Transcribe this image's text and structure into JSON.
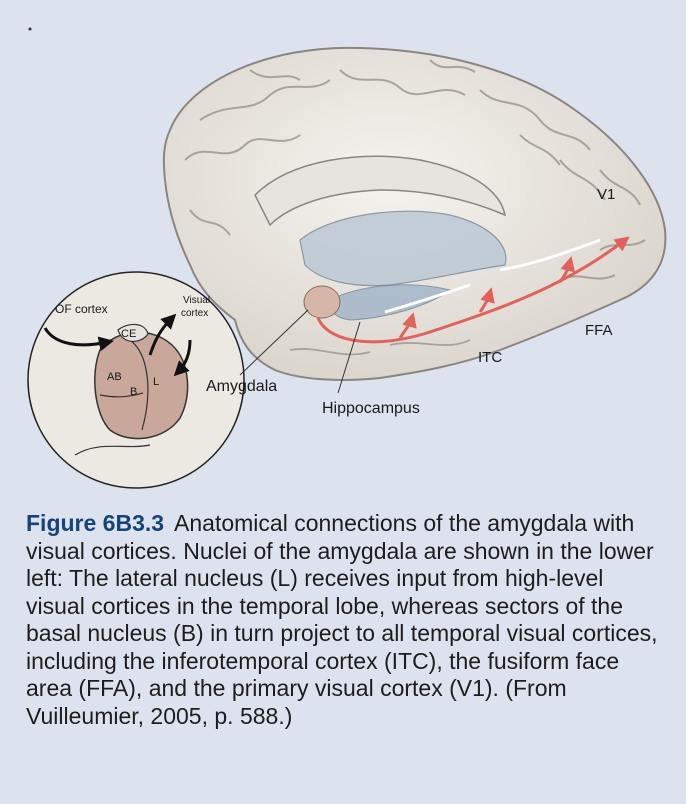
{
  "figure": {
    "labels": {
      "of_cortex": "OF cortex",
      "visual_cortex_line1": "Visual",
      "visual_cortex_line2": "cortex",
      "ce": "CE",
      "ab": "AB",
      "b": "B",
      "l": "L",
      "amygdala": "Amygdala",
      "hippocampus": "Hippocampus",
      "itc": "ITC",
      "ffa": "FFA",
      "v1": "V1"
    }
  },
  "caption": {
    "label": "Figure 6B3.3",
    "text": "Anatomical connections of the amygdala with visual cortices. Nuclei of the amygdala are shown in the lower left: The lateral nucleus (L) receives input from high-level visual cortices in the temporal lobe, whereas sectors of the basal nucleus (B) in turn project to all temporal visual cortices, including the inferotemporal cortex (ITC), the fusiform face area (FFA), and the primary visual cortex (V1). (From Vuilleumier, 2005, p. 588.)"
  },
  "colors": {
    "background": "#dde3ee",
    "caption_label": "#17427a",
    "pathway": "#e0625c",
    "brain": "#eeeae4"
  }
}
